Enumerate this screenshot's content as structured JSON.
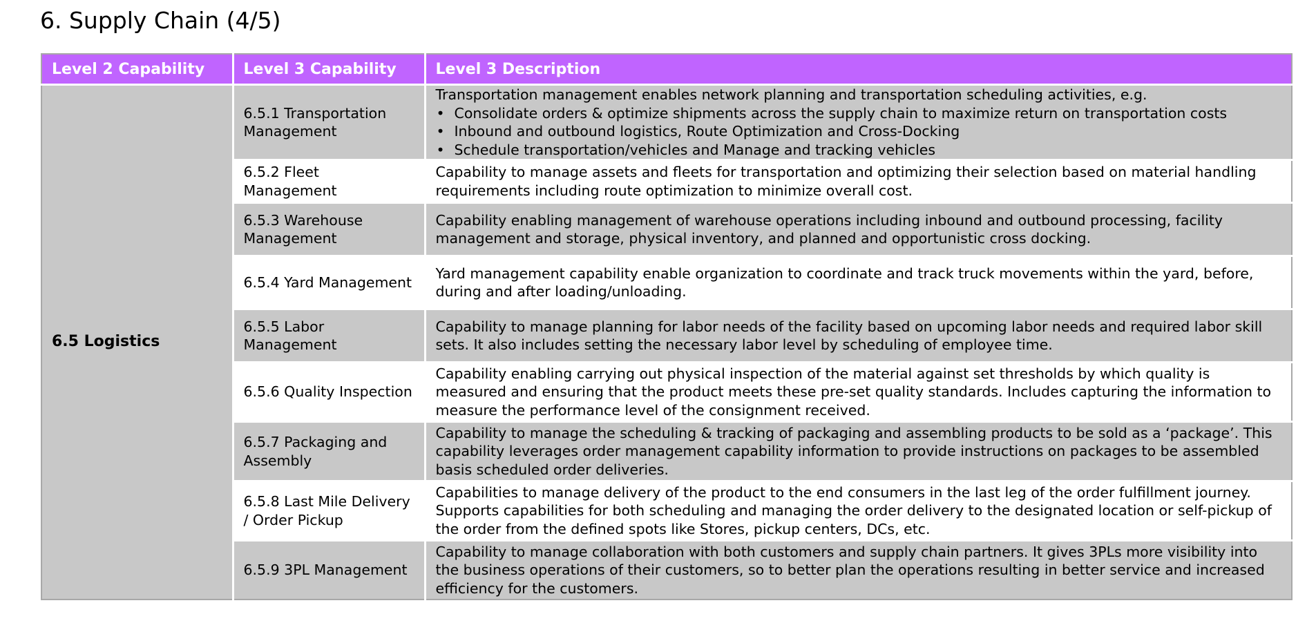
{
  "page": {
    "title": "6. Supply Chain (4/5)"
  },
  "table": {
    "headers": [
      "Level 2 Capability",
      "Level 3 Capability",
      "Level 3 Description"
    ],
    "level2": "6.5 Logistics",
    "rows": [
      {
        "level3": "6.5.1 Transportation Management",
        "description": "Transportation management enables network planning and transportation scheduling activities, e.g.",
        "bullets": [
          "Consolidate orders & optimize shipments across the supply chain to maximize return on transportation costs",
          "Inbound and outbound logistics, Route Optimization and Cross-Docking",
          "Schedule transportation/vehicles and Manage and tracking vehicles"
        ]
      },
      {
        "level3": "6.5.2 Fleet Management",
        "description": "Capability to manage assets and fleets for transportation and optimizing their selection based on material handling requirements including route optimization to minimize overall cost."
      },
      {
        "level3": "6.5.3 Warehouse Management",
        "description": "Capability enabling management of warehouse operations including inbound and outbound processing, facility management and storage, physical inventory, and planned and opportunistic cross docking."
      },
      {
        "level3": "6.5.4 Yard Management",
        "description": "Yard management capability enable organization to coordinate and track truck movements within the yard, before, during and after loading/unloading."
      },
      {
        "level3": "6.5.5 Labor Management",
        "description": "Capability to manage planning for labor needs of the facility based on upcoming labor needs and required labor skill sets. It also includes setting the necessary labor level by scheduling of employee time."
      },
      {
        "level3": "6.5.6 Quality Inspection",
        "description": "Capability enabling carrying out physical inspection of the material against set thresholds by which quality is measured and ensuring that the product meets these pre-set quality standards. Includes capturing the information to measure the performance level of the consignment received."
      },
      {
        "level3": "6.5.7 Packaging and Assembly",
        "description": "Capability to manage the scheduling & tracking of packaging and assembling products to be sold as a ‘package’. This capability leverages order management capability information to provide instructions on packages to be assembled basis scheduled order deliveries."
      },
      {
        "level3": "6.5.8 Last Mile Delivery / Order Pickup",
        "description": "Capabilities to manage delivery of the product to the end consumers in the last leg of the order fulfillment journey. Supports capabilities for both scheduling and managing the order delivery to the designated location or self-pickup of the order from the defined spots like Stores, pickup centers, DCs, etc."
      },
      {
        "level3": "6.5.9 3PL Management",
        "description": "Capability to manage collaboration with both customers and supply chain partners. It gives 3PLs more visibility into the business operations of their customers, so to better plan the operations resulting in better service and increased efficiency for the customers."
      }
    ]
  },
  "colors": {
    "header_bg": "#c064ff",
    "shaded_row_bg": "#c8c8c8",
    "plain_row_bg": "#ffffff"
  }
}
